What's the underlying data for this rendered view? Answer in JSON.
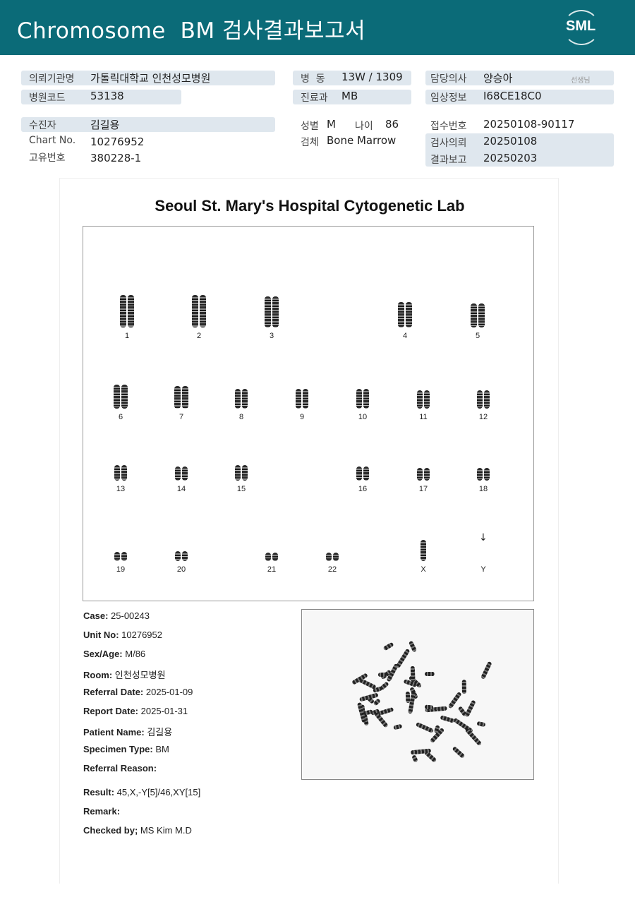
{
  "header": {
    "title": "Chromosome  BM 검사결과보고서",
    "logo": "SML"
  },
  "info": {
    "institution_label": "의뢰기관명",
    "institution": "가톨릭대학교 인천성모병원",
    "hospital_code_label": "병원코드",
    "hospital_code": "53138",
    "ward_label": "병  동",
    "ward": "13W / 1309",
    "dept_label": "진료과",
    "dept": "MB",
    "doctor_label": "담당의사",
    "doctor": "양승아",
    "doctor_suffix": "선생님",
    "clinical_label": "임상정보",
    "clinical": "I68CE18C0",
    "patient_label": "수진자",
    "patient": "김길용",
    "chart_label": "Chart No.",
    "chart": "10276952",
    "unique_label": "고유번호",
    "unique": "380228-1",
    "sex_label": "성별",
    "sex": "M",
    "age_label": "나이",
    "age": "86",
    "specimen_label": "검체",
    "specimen": "Bone Marrow",
    "receipt_label": "접수번호",
    "receipt": "20250108-90117",
    "request_label": "검사의뢰",
    "request": "20250108",
    "report_label": "결과보고",
    "report": "20250203"
  },
  "report": {
    "title": "Seoul St. Mary's Hospital Cytogenetic Lab",
    "chromosomes": [
      "1",
      "2",
      "3",
      "4",
      "5",
      "6",
      "7",
      "8",
      "9",
      "10",
      "11",
      "12",
      "13",
      "14",
      "15",
      "16",
      "17",
      "18",
      "19",
      "20",
      "21",
      "22",
      "X",
      "Y"
    ],
    "missing_marker": "↓",
    "fields": [
      {
        "label": "Case:",
        "value": "25-00243"
      },
      {
        "label": "Unit No:",
        "value": "10276952"
      },
      {
        "label": "Sex/Age:",
        "value": "M/86"
      },
      {
        "label": "Room:",
        "value": "인천성모병원"
      },
      {
        "label": "Referral Date:",
        "value": "2025-01-09"
      },
      {
        "label": "Report Date:",
        "value": "2025-01-31"
      },
      {
        "label": "Patient Name:",
        "value": "김길용"
      },
      {
        "label": "Specimen Type:",
        "value": "BM"
      },
      {
        "label": "Referral Reason:",
        "value": ""
      },
      {
        "label": "Result:",
        "value": "45,X,-Y[5]/46,XY[15]"
      },
      {
        "label": "Remark:",
        "value": ""
      },
      {
        "label": "Checked by;",
        "value": "MS Kim M.D"
      }
    ]
  }
}
